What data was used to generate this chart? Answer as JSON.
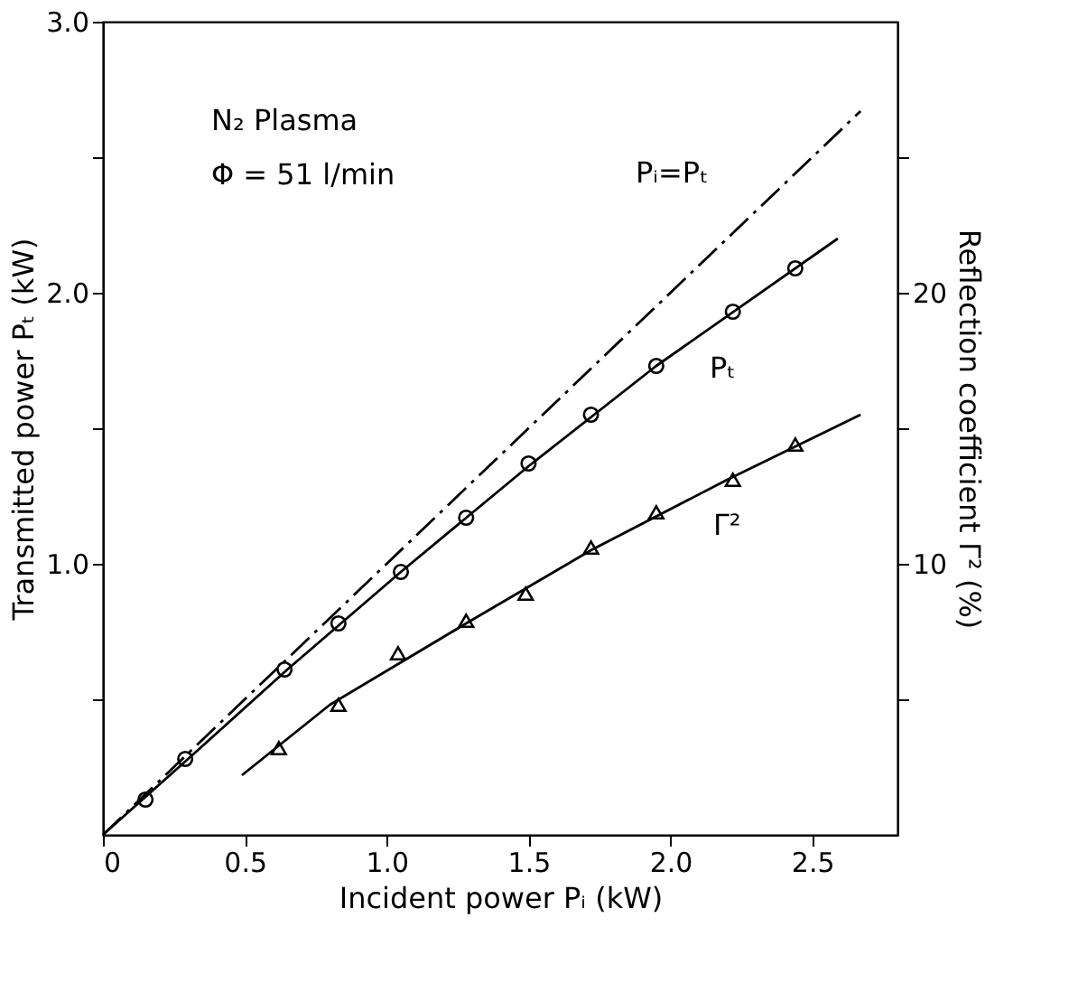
{
  "chart_data": {
    "type": "scatter",
    "xlabel": "Incident power Pᵢ (kW)",
    "ylabel": "Transmitted power Pₜ (kW)",
    "y2label": "Reflection coefficient Γ² (%)",
    "xlim": [
      0,
      2.8
    ],
    "xticks": [
      0,
      0.5,
      {
        "value": 1,
        "label": "1.0"
      },
      1.5,
      {
        "value": 2,
        "label": "2.0"
      },
      2.5
    ],
    "ylim": [
      0,
      3.0
    ],
    "yticks": [
      {
        "value": 0.5,
        "label": null
      },
      {
        "value": 1.0,
        "label": "1.0"
      },
      {
        "value": 1.5,
        "label": null
      },
      {
        "value": 2.0,
        "label": "2.0"
      },
      {
        "value": 2.5,
        "label": null
      },
      {
        "value": 3.0,
        "label": "3.0"
      }
    ],
    "y2lim": [
      0,
      30
    ],
    "y2ticks": [
      {
        "value": 5,
        "label": null
      },
      10,
      {
        "value": 15,
        "label": null
      },
      20,
      {
        "value": 25,
        "label": null
      }
    ],
    "grid": false,
    "series": [
      {
        "marker": "circle",
        "color": "#000000",
        "x": [
          0.15,
          0.29,
          0.64,
          0.83,
          1.05,
          1.28,
          1.5,
          1.72,
          1.95,
          2.22,
          2.44
        ],
        "values": [
          0.13,
          0.28,
          0.61,
          0.78,
          0.97,
          1.17,
          1.37,
          1.55,
          1.73,
          1.93,
          2.09
        ]
      },
      {
        "type": "line",
        "line_style": "solid",
        "color": "#000000",
        "x": [
          0,
          0.3,
          0.65,
          1.05,
          1.5,
          1.95,
          2.59
        ],
        "values": [
          0,
          0.28,
          0.61,
          0.97,
          1.36,
          1.73,
          2.2
        ]
      },
      {
        "type": "line",
        "line_style": "dashed",
        "color": "#000000",
        "x": [
          0,
          2.67
        ],
        "values": [
          0,
          2.67
        ]
      },
      {
        "marker": "triangle",
        "axis": "y2",
        "color": "#000000",
        "x": [
          0.62,
          0.83,
          1.04,
          1.28,
          1.49,
          1.72,
          1.95,
          2.22,
          2.44
        ],
        "values": [
          3.2,
          4.8,
          6.7,
          7.9,
          8.9,
          10.6,
          11.9,
          13.1,
          14.4
        ]
      },
      {
        "type": "line",
        "line_style": "solid",
        "axis": "y2",
        "color": "#000000",
        "x": [
          0.49,
          0.8,
          1.28,
          1.72,
          2.2,
          2.67
        ],
        "values": [
          2.2,
          4.8,
          7.8,
          10.5,
          13.1,
          15.5
        ]
      }
    ],
    "annotations": [
      "N₂ Plasma",
      "Φ = 51 l/min",
      "Pᵢ=Pₜ",
      "Pₜ",
      "Γ²"
    ]
  }
}
